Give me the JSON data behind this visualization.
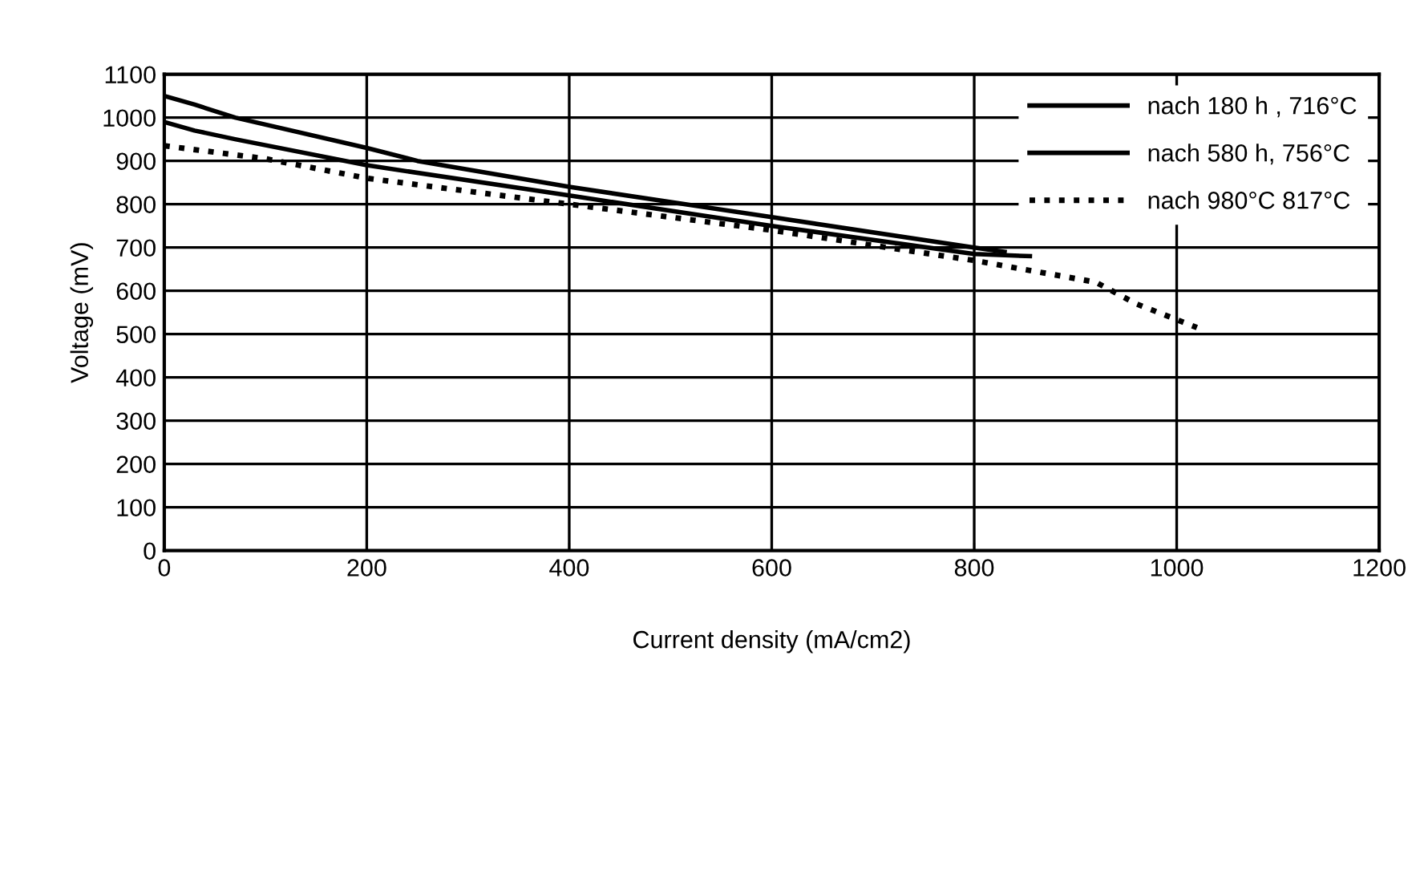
{
  "chart_data": {
    "type": "line",
    "xlabel": "Current density (mA/cm2)",
    "ylabel": "Voltage (mV)",
    "xlim": [
      0,
      1200
    ],
    "xticks": [
      0,
      200,
      400,
      600,
      800,
      1000,
      1200
    ],
    "ylim": [
      0,
      1100
    ],
    "yticks": [
      0,
      100,
      200,
      300,
      400,
      500,
      600,
      700,
      800,
      900,
      1000,
      1100
    ],
    "grid": true,
    "legend": "top right",
    "marker": "none",
    "series": [
      {
        "name": "nach 180 h , 716°C",
        "color": "#000000",
        "line_style": "solid",
        "x": [
          0,
          30,
          70,
          200,
          250,
          400,
          600,
          800,
          830
        ],
        "values": [
          1050,
          1030,
          1000,
          930,
          900,
          840,
          770,
          700,
          690
        ]
      },
      {
        "name": "nach 580 h, 756°C",
        "color": "#000000",
        "line_style": "solid",
        "x": [
          0,
          30,
          70,
          200,
          400,
          600,
          800,
          855
        ],
        "values": [
          990,
          970,
          950,
          890,
          820,
          750,
          685,
          680
        ]
      },
      {
        "name": "nach 980°C 817°C",
        "color": "#000000",
        "line_style": "dotted",
        "x": [
          0,
          100,
          200,
          400,
          600,
          800,
          920,
          960,
          1020
        ],
        "values": [
          935,
          905,
          860,
          800,
          740,
          670,
          620,
          570,
          515
        ]
      }
    ]
  }
}
